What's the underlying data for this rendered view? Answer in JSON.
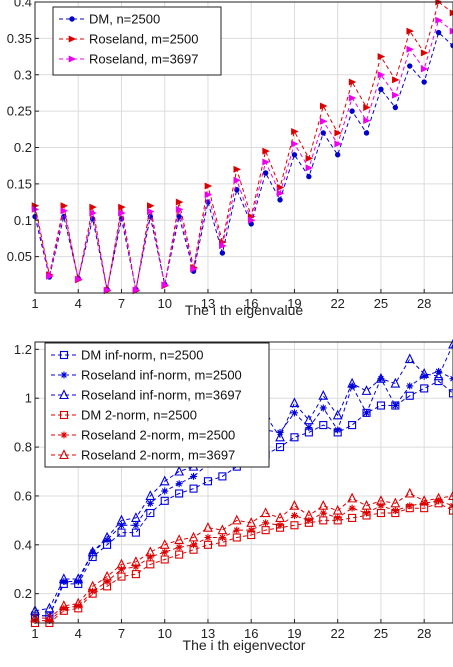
{
  "chart_data": [
    {
      "type": "line",
      "xlabel": "The i th eigenvalue",
      "ylabel": "",
      "xlim": [
        1,
        30
      ],
      "ylim": [
        0,
        0.4
      ],
      "xticks": [
        1,
        4,
        7,
        10,
        13,
        16,
        19,
        22,
        25,
        28
      ],
      "yticks": [
        0.05,
        0.1,
        0.15,
        0.2,
        0.25,
        0.3,
        0.35,
        0.4
      ],
      "ytick_labels": [
        "0.05",
        "0.1",
        "0.15",
        "0.2",
        "0.25",
        "0.3",
        "0.35",
        "0.4"
      ],
      "grid": true,
      "legend_position": "top-left",
      "series": [
        {
          "name": "DM, n=2500",
          "color": "#0000cc",
          "marker": "dot",
          "x": [
            1,
            2,
            3,
            4,
            5,
            6,
            7,
            8,
            9,
            10,
            11,
            12,
            13,
            14,
            15,
            16,
            17,
            18,
            19,
            20,
            21,
            22,
            23,
            24,
            25,
            26,
            27,
            28,
            29,
            30
          ],
          "y": [
            0.105,
            0.022,
            0.105,
            0.02,
            0.102,
            0.005,
            0.102,
            0.005,
            0.105,
            0.012,
            0.105,
            0.03,
            0.125,
            0.055,
            0.142,
            0.095,
            0.165,
            0.128,
            0.19,
            0.16,
            0.22,
            0.19,
            0.25,
            0.22,
            0.28,
            0.255,
            0.312,
            0.29,
            0.358,
            0.34
          ]
        },
        {
          "name": "Roseland, m=2500",
          "color": "#dd0000",
          "marker": "triangle-right",
          "x": [
            1,
            2,
            3,
            4,
            5,
            6,
            7,
            8,
            9,
            10,
            11,
            12,
            13,
            14,
            15,
            16,
            17,
            18,
            19,
            20,
            21,
            22,
            23,
            24,
            25,
            26,
            27,
            28,
            29,
            30
          ],
          "y": [
            0.12,
            0.025,
            0.12,
            0.018,
            0.118,
            0.003,
            0.118,
            0.003,
            0.12,
            0.01,
            0.125,
            0.035,
            0.147,
            0.07,
            0.17,
            0.105,
            0.195,
            0.145,
            0.222,
            0.185,
            0.257,
            0.22,
            0.29,
            0.255,
            0.325,
            0.293,
            0.36,
            0.33,
            0.4,
            0.385
          ]
        },
        {
          "name": "Roseland, m=3697",
          "color": "#ee00ee",
          "marker": "triangle-right",
          "x": [
            1,
            2,
            3,
            4,
            5,
            6,
            7,
            8,
            9,
            10,
            11,
            12,
            13,
            14,
            15,
            16,
            17,
            18,
            19,
            20,
            21,
            22,
            23,
            24,
            25,
            26,
            27,
            28,
            29,
            30
          ],
          "y": [
            0.115,
            0.023,
            0.113,
            0.019,
            0.11,
            0.004,
            0.11,
            0.004,
            0.112,
            0.011,
            0.115,
            0.033,
            0.135,
            0.065,
            0.155,
            0.1,
            0.18,
            0.137,
            0.205,
            0.172,
            0.236,
            0.205,
            0.268,
            0.237,
            0.3,
            0.272,
            0.335,
            0.308,
            0.375,
            0.36
          ]
        }
      ]
    },
    {
      "type": "line",
      "xlabel": "The i th eigenvector",
      "ylabel": "",
      "xlim": [
        1,
        30
      ],
      "ylim": [
        0.08,
        1.23
      ],
      "xticks": [
        1,
        4,
        7,
        10,
        13,
        16,
        19,
        22,
        25,
        28
      ],
      "yticks": [
        0.2,
        0.4,
        0.6,
        0.8,
        1.0,
        1.2
      ],
      "ytick_labels": [
        "0.2",
        "0.4",
        "0.6",
        "0.8",
        "1",
        "1.2"
      ],
      "grid": true,
      "legend_position": "top-left",
      "series": [
        {
          "name": "DM inf-norm, n=2500",
          "color": "#0000dd",
          "marker": "square",
          "x": [
            1,
            2,
            3,
            4,
            5,
            6,
            7,
            8,
            9,
            10,
            11,
            12,
            13,
            14,
            15,
            16,
            17,
            18,
            19,
            20,
            21,
            22,
            23,
            24,
            25,
            26,
            27,
            28,
            29,
            30
          ],
          "y": [
            0.11,
            0.11,
            0.24,
            0.24,
            0.35,
            0.4,
            0.45,
            0.45,
            0.53,
            0.58,
            0.61,
            0.63,
            0.66,
            0.68,
            0.72,
            0.74,
            0.77,
            0.8,
            0.84,
            0.86,
            0.89,
            0.86,
            0.89,
            0.94,
            0.97,
            0.97,
            1.01,
            1.04,
            1.07,
            1.02
          ]
        },
        {
          "name": "Roseland inf-norm, m=2500",
          "color": "#0000dd",
          "marker": "asterisk",
          "x": [
            1,
            2,
            3,
            4,
            5,
            6,
            7,
            8,
            9,
            10,
            11,
            12,
            13,
            14,
            15,
            16,
            17,
            18,
            19,
            20,
            21,
            22,
            23,
            24,
            25,
            26,
            27,
            28,
            29,
            30
          ],
          "y": [
            0.11,
            0.11,
            0.25,
            0.25,
            0.37,
            0.42,
            0.48,
            0.48,
            0.57,
            0.62,
            0.65,
            0.68,
            0.73,
            0.75,
            0.79,
            0.8,
            0.87,
            0.86,
            0.94,
            0.88,
            0.96,
            0.87,
            1.05,
            0.94,
            1.08,
            0.97,
            1.05,
            1.09,
            1.11,
            1.08
          ]
        },
        {
          "name": "Roseland inf-norm, m=3697",
          "color": "#0000dd",
          "marker": "triangle",
          "x": [
            1,
            2,
            3,
            4,
            5,
            6,
            7,
            8,
            9,
            10,
            11,
            12,
            13,
            14,
            15,
            16,
            17,
            18,
            19,
            20,
            21,
            22,
            23,
            24,
            25,
            26,
            27,
            28,
            29,
            30
          ],
          "y": [
            0.13,
            0.14,
            0.26,
            0.26,
            0.37,
            0.43,
            0.5,
            0.51,
            0.6,
            0.66,
            0.7,
            0.72,
            0.79,
            0.76,
            0.85,
            0.82,
            0.93,
            0.84,
            0.98,
            0.91,
            1.01,
            0.93,
            1.06,
            1.03,
            1.08,
            1.06,
            1.16,
            1.1,
            1.09,
            1.22
          ]
        },
        {
          "name": "DM 2-norm, n=2500",
          "color": "#dd0000",
          "marker": "square",
          "x": [
            1,
            2,
            3,
            4,
            5,
            6,
            7,
            8,
            9,
            10,
            11,
            12,
            13,
            14,
            15,
            16,
            17,
            18,
            19,
            20,
            21,
            22,
            23,
            24,
            25,
            26,
            27,
            28,
            29,
            30
          ],
          "y": [
            0.08,
            0.08,
            0.13,
            0.14,
            0.2,
            0.23,
            0.27,
            0.28,
            0.32,
            0.34,
            0.36,
            0.38,
            0.4,
            0.41,
            0.43,
            0.44,
            0.46,
            0.47,
            0.48,
            0.49,
            0.5,
            0.5,
            0.51,
            0.52,
            0.53,
            0.53,
            0.55,
            0.55,
            0.57,
            0.54
          ]
        },
        {
          "name": "Roseland 2-norm, m=2500",
          "color": "#dd0000",
          "marker": "asterisk",
          "x": [
            1,
            2,
            3,
            4,
            5,
            6,
            7,
            8,
            9,
            10,
            11,
            12,
            13,
            14,
            15,
            16,
            17,
            18,
            19,
            20,
            21,
            22,
            23,
            24,
            25,
            26,
            27,
            28,
            29,
            30
          ],
          "y": [
            0.09,
            0.09,
            0.14,
            0.15,
            0.21,
            0.25,
            0.3,
            0.31,
            0.35,
            0.37,
            0.39,
            0.4,
            0.43,
            0.43,
            0.46,
            0.46,
            0.49,
            0.48,
            0.52,
            0.5,
            0.53,
            0.51,
            0.55,
            0.53,
            0.56,
            0.54,
            0.56,
            0.57,
            0.58,
            0.56
          ]
        },
        {
          "name": "Roseland 2-norm, m=3697",
          "color": "#dd0000",
          "marker": "triangle",
          "x": [
            1,
            2,
            3,
            4,
            5,
            6,
            7,
            8,
            9,
            10,
            11,
            12,
            13,
            14,
            15,
            16,
            17,
            18,
            19,
            20,
            21,
            22,
            23,
            24,
            25,
            26,
            27,
            28,
            29,
            30
          ],
          "y": [
            0.1,
            0.1,
            0.15,
            0.16,
            0.23,
            0.27,
            0.32,
            0.33,
            0.37,
            0.4,
            0.42,
            0.43,
            0.47,
            0.46,
            0.5,
            0.49,
            0.53,
            0.51,
            0.56,
            0.52,
            0.56,
            0.54,
            0.59,
            0.56,
            0.58,
            0.57,
            0.61,
            0.58,
            0.59,
            0.6
          ]
        }
      ]
    }
  ]
}
